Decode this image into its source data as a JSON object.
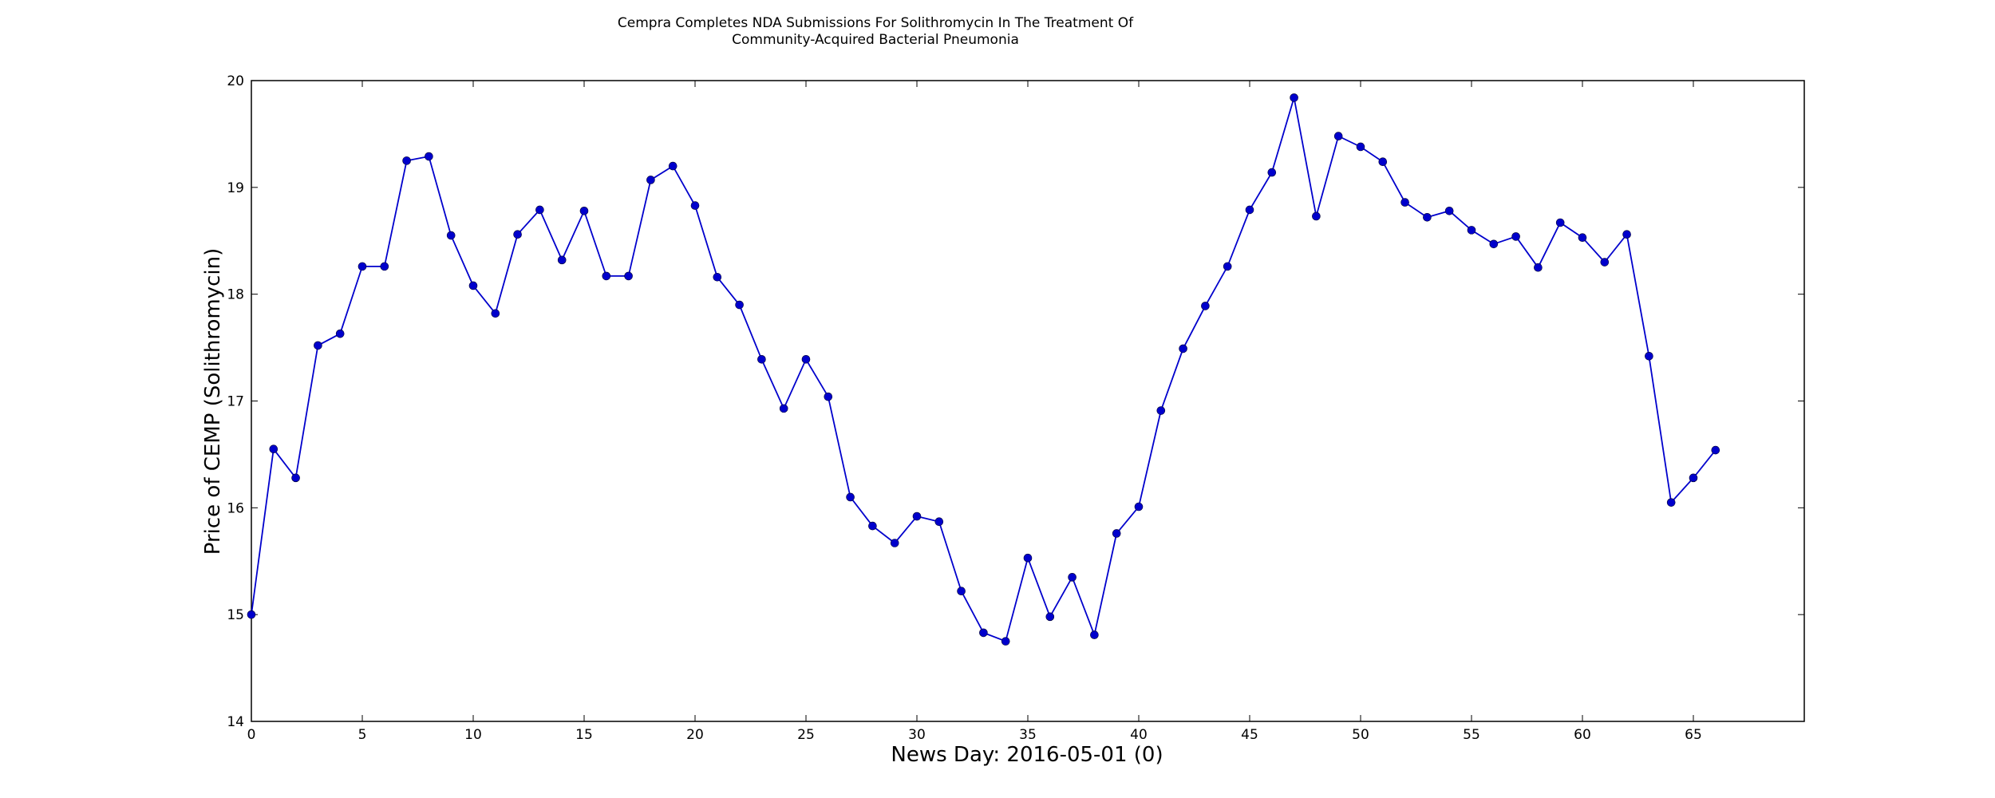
{
  "chart_data": {
    "type": "line",
    "title": "Cempra Completes NDA Submissions For Solithromycin In The Treatment Of Community-Acquired Bacterial Pneumonia",
    "title_lines": [
      "Cempra Completes NDA Submissions For Solithromycin In The Treatment Of",
      "Community-Acquired Bacterial Pneumonia"
    ],
    "xlabel": "News Day: 2016-05-01 (0)",
    "ylabel": "Price of CEMP (Solithromycin)",
    "xlim": [
      0,
      70
    ],
    "ylim": [
      14,
      20
    ],
    "xticks": [
      0,
      5,
      10,
      15,
      20,
      25,
      30,
      35,
      40,
      45,
      50,
      55,
      60,
      65
    ],
    "yticks": [
      14,
      15,
      16,
      17,
      18,
      19,
      20
    ],
    "grid": false,
    "line_color": "#0000cc",
    "series": [
      {
        "values": [
          15.0,
          16.55,
          16.28,
          17.52,
          17.63,
          18.26,
          18.26,
          19.25,
          19.29,
          18.55,
          18.08,
          17.82,
          18.56,
          18.79,
          18.32,
          18.78,
          18.17,
          18.17,
          19.07,
          19.2,
          18.83,
          18.16,
          17.9,
          17.39,
          16.93,
          17.39,
          17.04,
          16.1,
          15.83,
          15.67,
          15.92,
          15.87,
          15.22,
          14.83,
          14.75,
          15.53,
          14.98,
          15.35,
          14.81,
          15.76,
          16.01,
          16.91,
          17.49,
          17.89,
          18.26,
          18.79,
          19.14,
          19.84,
          18.73,
          19.48,
          19.38,
          19.24,
          18.86,
          18.72,
          18.78,
          18.6,
          18.47,
          18.54,
          18.25,
          18.67,
          18.53,
          18.3,
          18.56,
          17.42,
          16.05,
          16.28,
          16.54
        ]
      }
    ]
  }
}
